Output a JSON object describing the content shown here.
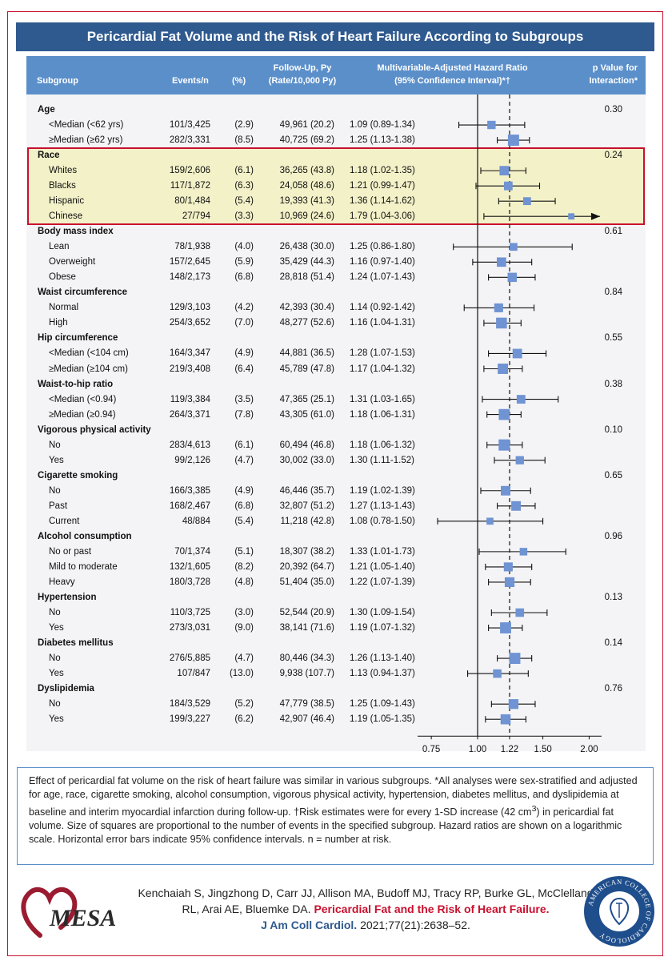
{
  "title": "Pericardial Fat Volume and the Risk of Heart Failure According to Subgroups",
  "headers": {
    "subgroup": "Subgroup",
    "events": "Events/n",
    "pct": "(%)",
    "followup_1": "Follow-Up, Py",
    "followup_2": "(Rate/10,000 Py)",
    "hr_1": "Multivariable-Adjusted Hazard Ratio",
    "hr_2": "(95% Confidence Interval)*†",
    "p_1": "p Value for",
    "p_2": "Interaction*"
  },
  "chart_data": {
    "type": "forest",
    "x_scale": "log",
    "xlim": [
      0.7,
      2.08
    ],
    "x_ticks": [
      "0.75",
      "1.00",
      "1.22",
      "1.50",
      "2.00"
    ],
    "x_tick_values": [
      0.75,
      1.0,
      1.22,
      1.5,
      2.0
    ],
    "reference_line": 1.0,
    "overall_dashed_line": 1.22,
    "groups": [
      {
        "name": "Age",
        "p": "0.30",
        "rows": [
          {
            "label": "<Median (<62 yrs)",
            "events": "101/3,425",
            "pct": "(2.9)",
            "followup": "49,961 (20.2)",
            "hr_text": "1.09 (0.89-1.34)",
            "hr": 1.09,
            "lo": 0.89,
            "hi": 1.34,
            "n_events": 101
          },
          {
            "label": "≥Median (≥62 yrs)",
            "events": "282/3,331",
            "pct": "(8.5)",
            "followup": "40,725 (69.2)",
            "hr_text": "1.25 (1.13-1.38)",
            "hr": 1.25,
            "lo": 1.13,
            "hi": 1.38,
            "n_events": 282
          }
        ]
      },
      {
        "name": "Race",
        "p": "0.24",
        "highlight": true,
        "rows": [
          {
            "label": "Whites",
            "events": "159/2,606",
            "pct": "(6.1)",
            "followup": "36,265 (43.8)",
            "hr_text": "1.18 (1.02-1.35)",
            "hr": 1.18,
            "lo": 1.02,
            "hi": 1.35,
            "n_events": 159
          },
          {
            "label": "Blacks",
            "events": "117/1,872",
            "pct": "(6.3)",
            "followup": "24,058 (48.6)",
            "hr_text": "1.21 (0.99-1.47)",
            "hr": 1.21,
            "lo": 0.99,
            "hi": 1.47,
            "n_events": 117
          },
          {
            "label": "Hispanic",
            "events": "80/1,484",
            "pct": "(5.4)",
            "followup": "19,393 (41.3)",
            "hr_text": "1.36 (1.14-1.62)",
            "hr": 1.36,
            "lo": 1.14,
            "hi": 1.62,
            "n_events": 80
          },
          {
            "label": "Chinese",
            "events": "27/794",
            "pct": "(3.3)",
            "followup": "10,969 (24.6)",
            "hr_text": "1.79 (1.04-3.06)",
            "hr": 1.79,
            "lo": 1.04,
            "hi": 3.06,
            "n_events": 27,
            "arrow": true
          }
        ]
      },
      {
        "name": "Body mass index",
        "p": "0.61",
        "rows": [
          {
            "label": "Lean",
            "events": "78/1,938",
            "pct": "(4.0)",
            "followup": "26,438 (30.0)",
            "hr_text": "1.25 (0.86-1.80)",
            "hr": 1.25,
            "lo": 0.86,
            "hi": 1.8,
            "n_events": 78
          },
          {
            "label": "Overweight",
            "events": "157/2,645",
            "pct": "(5.9)",
            "followup": "35,429 (44.3)",
            "hr_text": "1.16 (0.97-1.40)",
            "hr": 1.16,
            "lo": 0.97,
            "hi": 1.4,
            "n_events": 157
          },
          {
            "label": "Obese",
            "events": "148/2,173",
            "pct": "(6.8)",
            "followup": "28,818 (51.4)",
            "hr_text": "1.24 (1.07-1.43)",
            "hr": 1.24,
            "lo": 1.07,
            "hi": 1.43,
            "n_events": 148
          }
        ]
      },
      {
        "name": "Waist circumference",
        "p": "0.84",
        "rows": [
          {
            "label": "Normal",
            "events": "129/3,103",
            "pct": "(4.2)",
            "followup": "42,393 (30.4)",
            "hr_text": "1.14 (0.92-1.42)",
            "hr": 1.14,
            "lo": 0.92,
            "hi": 1.42,
            "n_events": 129
          },
          {
            "label": "High",
            "events": "254/3,652",
            "pct": "(7.0)",
            "followup": "48,277 (52.6)",
            "hr_text": "1.16 (1.04-1.31)",
            "hr": 1.16,
            "lo": 1.04,
            "hi": 1.31,
            "n_events": 254
          }
        ]
      },
      {
        "name": "Hip circumference",
        "p": "0.55",
        "rows": [
          {
            "label": "<Median (<104 cm)",
            "events": "164/3,347",
            "pct": "(4.9)",
            "followup": "44,881 (36.5)",
            "hr_text": "1.28 (1.07-1.53)",
            "hr": 1.28,
            "lo": 1.07,
            "hi": 1.53,
            "n_events": 164
          },
          {
            "label": "≥Median (≥104 cm)",
            "events": "219/3,408",
            "pct": "(6.4)",
            "followup": "45,789 (47.8)",
            "hr_text": "1.17 (1.04-1.32)",
            "hr": 1.17,
            "lo": 1.04,
            "hi": 1.32,
            "n_events": 219
          }
        ]
      },
      {
        "name": "Waist-to-hip ratio",
        "p": "0.38",
        "rows": [
          {
            "label": "<Median (<0.94)",
            "events": "119/3,384",
            "pct": "(3.5)",
            "followup": "47,365 (25.1)",
            "hr_text": "1.31 (1.03-1.65)",
            "hr": 1.31,
            "lo": 1.03,
            "hi": 1.65,
            "n_events": 119
          },
          {
            "label": "≥Median (≥0.94)",
            "events": "264/3,371",
            "pct": "(7.8)",
            "followup": "43,305 (61.0)",
            "hr_text": "1.18 (1.06-1.31)",
            "hr": 1.18,
            "lo": 1.06,
            "hi": 1.31,
            "n_events": 264
          }
        ]
      },
      {
        "name": "Vigorous physical activity",
        "p": "0.10",
        "rows": [
          {
            "label": "No",
            "events": "283/4,613",
            "pct": "(6.1)",
            "followup": "60,494 (46.8)",
            "hr_text": "1.18 (1.06-1.32)",
            "hr": 1.18,
            "lo": 1.06,
            "hi": 1.32,
            "n_events": 283
          },
          {
            "label": "Yes",
            "events": "99/2,126",
            "pct": "(4.7)",
            "followup": "30,002 (33.0)",
            "hr_text": "1.30 (1.11-1.52)",
            "hr": 1.3,
            "lo": 1.11,
            "hi": 1.52,
            "n_events": 99
          }
        ]
      },
      {
        "name": "Cigarette smoking",
        "p": "0.65",
        "rows": [
          {
            "label": "No",
            "events": "166/3,385",
            "pct": "(4.9)",
            "followup": "46,446 (35.7)",
            "hr_text": "1.19 (1.02-1.39)",
            "hr": 1.19,
            "lo": 1.02,
            "hi": 1.39,
            "n_events": 166
          },
          {
            "label": "Past",
            "events": "168/2,467",
            "pct": "(6.8)",
            "followup": "32,807 (51.2)",
            "hr_text": "1.27 (1.13-1.43)",
            "hr": 1.27,
            "lo": 1.13,
            "hi": 1.43,
            "n_events": 168
          },
          {
            "label": "Current",
            "events": "48/884",
            "pct": "(5.4)",
            "followup": "11,218 (42.8)",
            "hr_text": "1.08 (0.78-1.50)",
            "hr": 1.08,
            "lo": 0.78,
            "hi": 1.5,
            "n_events": 48
          }
        ]
      },
      {
        "name": "Alcohol consumption",
        "p": "0.96",
        "rows": [
          {
            "label": "No or past",
            "events": "70/1,374",
            "pct": "(5.1)",
            "followup": "18,307 (38.2)",
            "hr_text": "1.33 (1.01-1.73)",
            "hr": 1.33,
            "lo": 1.01,
            "hi": 1.73,
            "n_events": 70
          },
          {
            "label": "Mild to moderate",
            "events": "132/1,605",
            "pct": "(8.2)",
            "followup": "20,392 (64.7)",
            "hr_text": "1.21 (1.05-1.40)",
            "hr": 1.21,
            "lo": 1.05,
            "hi": 1.4,
            "n_events": 132
          },
          {
            "label": "Heavy",
            "events": "180/3,728",
            "pct": "(4.8)",
            "followup": "51,404 (35.0)",
            "hr_text": "1.22 (1.07-1.39)",
            "hr": 1.22,
            "lo": 1.07,
            "hi": 1.39,
            "n_events": 180
          }
        ]
      },
      {
        "name": "Hypertension",
        "p": "0.13",
        "rows": [
          {
            "label": "No",
            "events": "110/3,725",
            "pct": "(3.0)",
            "followup": "52,544 (20.9)",
            "hr_text": "1.30 (1.09-1.54)",
            "hr": 1.3,
            "lo": 1.09,
            "hi": 1.54,
            "n_events": 110
          },
          {
            "label": "Yes",
            "events": "273/3,031",
            "pct": "(9.0)",
            "followup": "38,141 (71.6)",
            "hr_text": "1.19 (1.07-1.32)",
            "hr": 1.19,
            "lo": 1.07,
            "hi": 1.32,
            "n_events": 273
          }
        ]
      },
      {
        "name": "Diabetes mellitus",
        "p": "0.14",
        "rows": [
          {
            "label": "No",
            "events": "276/5,885",
            "pct": "(4.7)",
            "followup": "80,446 (34.3)",
            "hr_text": "1.26 (1.13-1.40)",
            "hr": 1.26,
            "lo": 1.13,
            "hi": 1.4,
            "n_events": 276
          },
          {
            "label": "Yes",
            "events": "107/847",
            "pct": "(13.0)",
            "followup": "9,938 (107.7)",
            "hr_text": "1.13 (0.94-1.37)",
            "hr": 1.13,
            "lo": 0.94,
            "hi": 1.37,
            "n_events": 107
          }
        ]
      },
      {
        "name": "Dyslipidemia",
        "p": "0.76",
        "rows": [
          {
            "label": "No",
            "events": "184/3,529",
            "pct": "(5.2)",
            "followup": "47,779 (38.5)",
            "hr_text": "1.25 (1.09-1.43)",
            "hr": 1.25,
            "lo": 1.09,
            "hi": 1.43,
            "n_events": 184
          },
          {
            "label": "Yes",
            "events": "199/3,227",
            "pct": "(6.2)",
            "followup": "42,907 (46.4)",
            "hr_text": "1.19 (1.05-1.35)",
            "hr": 1.19,
            "lo": 1.05,
            "hi": 1.35,
            "n_events": 199
          }
        ]
      }
    ]
  },
  "caption": {
    "part1": "Effect of pericardial fat volume on the risk of heart failure was similar in various subgroups. *All analyses were sex-stratified and adjusted for age, race, cigarette smoking, alcohol consumption, vigorous physical activity, hypertension, diabetes mellitus, and dyslipidemia at baseline and interim myocardial infarction during follow-up. †Risk estimates were for every 1-SD increase (42 cm",
    "sup": "3",
    "part2": ") in pericardial fat volume. Size of squares are proportional to the number of events in the specified subgroup. Hazard ratios are shown on a logarithmic scale. Horizontal error bars indicate 95% confidence intervals. n = number at risk."
  },
  "citation": {
    "authors": "Kenchaiah S, Jingzhong D, Carr JJ, Allison MA,  Budoff MJ, Tracy RP, Burke GL, McClelland RL, Arai AE, Bluemke DA.",
    "article": "Pericardial Fat and the Risk of Heart Failure.",
    "journal": "J Am Coll Cardiol.",
    "ref": "2021;77(21):2638–52."
  },
  "logo_left": {
    "text": "MESA"
  },
  "logo_right": {
    "text": "AMERICAN COLLEGE OF CARDIOLOGY"
  },
  "colors": {
    "banner": "#2f5a8f",
    "header": "#5b8fca",
    "panel": "#f4f4f6",
    "race_highlight": "#f3f1c8",
    "red_accent": "#c8102e",
    "marker": "#6f93d3"
  }
}
